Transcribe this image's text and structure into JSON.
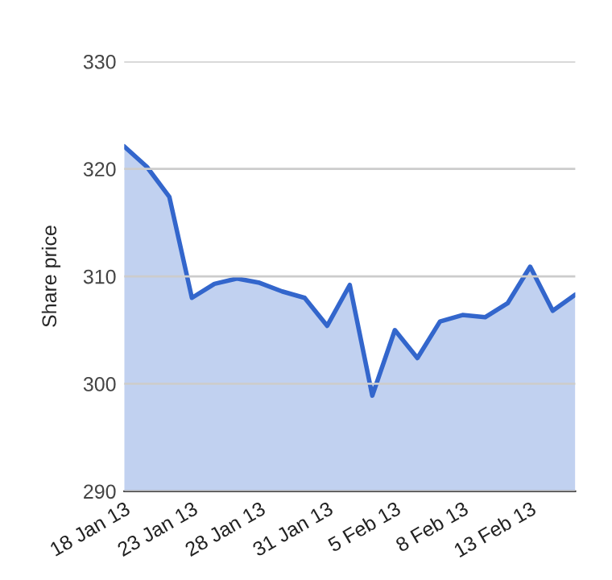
{
  "chart_data": {
    "type": "area",
    "ylabel": "Share price",
    "categories": [
      "18 Jan 13",
      null,
      null,
      "23 Jan 13",
      null,
      null,
      "28 Jan 13",
      null,
      null,
      "31 Jan 13",
      null,
      null,
      "5 Feb 13",
      null,
      null,
      "8 Feb 13",
      null,
      null,
      "13 Feb 13",
      null,
      null
    ],
    "series": [
      {
        "color": "#3366cc",
        "values": [
          322.1,
          320.2,
          317.4,
          308.0,
          309.3,
          309.8,
          309.4,
          308.6,
          308.0,
          305.4,
          309.2,
          298.9,
          305.0,
          302.4,
          305.8,
          306.4,
          306.2,
          307.5,
          310.9,
          306.8,
          308.3
        ]
      }
    ],
    "ylim": [
      290,
      330
    ],
    "yticks": [
      290,
      300,
      310,
      320,
      330
    ],
    "grid": "y",
    "legend": false
  }
}
